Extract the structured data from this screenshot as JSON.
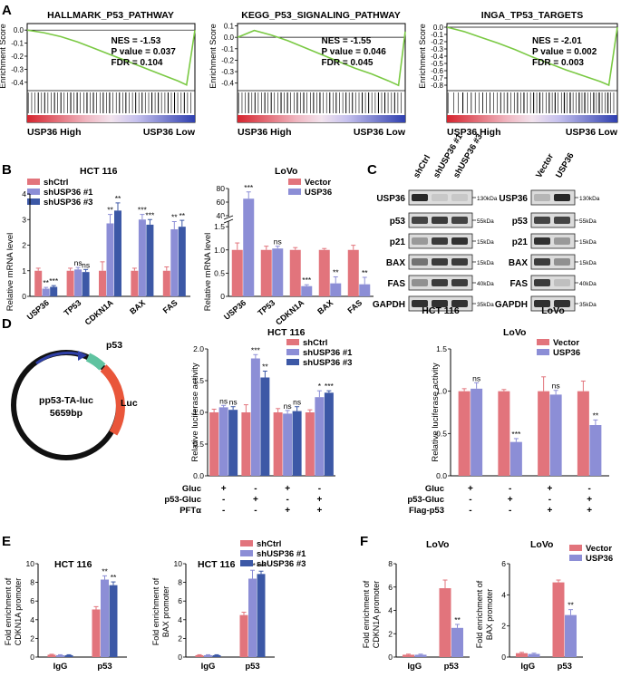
{
  "colors": {
    "pink": "#e2747c",
    "lav": "#8c8ed6",
    "navy": "#3c58a6",
    "gsea_line": "#7ac943",
    "gel_dark": "#1e1e1e",
    "gel_bg": "#dcdcdc"
  },
  "panel_letters": {
    "a": "A",
    "b": "B",
    "c": "C",
    "d": "D",
    "e": "E",
    "f": "F"
  },
  "gsea": {
    "ylabel": "Enrichment Score",
    "xleft": "USP36 High",
    "xright": "USP36 Low",
    "plots": [
      {
        "title": "HALLMARK_P53_PATHWAY",
        "nes": "NES = -1.53",
        "p": "P value = 0.037",
        "fdr": "FDR = 0.104",
        "ticks": [
          "0.0",
          "-0.1",
          "-0.2",
          "-0.3",
          "-0.4"
        ]
      },
      {
        "title": "KEGG_P53_SIGNALING_PATHWAY",
        "nes": "NES = -1.55",
        "p": "P value = 0.046",
        "fdr": "FDR = 0.045",
        "ticks": [
          "0.1",
          "0.0",
          "-0.1",
          "-0.2",
          "-0.3",
          "-0.4"
        ]
      },
      {
        "title": "INGA_TP53_TARGETS",
        "nes": "NES = -2.01",
        "p": "P value = 0.002",
        "fdr": "FDR = 0.003",
        "ticks": [
          "0.0",
          "-0.1",
          "-0.2",
          "-0.3",
          "-0.4",
          "-0.5",
          "-0.6",
          "-0.7",
          "-0.8"
        ]
      }
    ]
  },
  "b": {
    "hct": {
      "title": "HCT 116",
      "ylabel": "Relative mRNA level",
      "legend": [
        "shCtrl",
        "shUSP36 #1",
        "shUSP36 #3"
      ],
      "ticks": [
        "0",
        "1",
        "2",
        "3",
        "4"
      ],
      "categories": [
        "USP36",
        "TP53",
        "CDKN1A",
        "BAX",
        "FAS"
      ],
      "stars": [
        "**",
        "***",
        "ns",
        "ns",
        "**",
        "**",
        "***",
        "***",
        "**",
        "**"
      ]
    },
    "lovo": {
      "title": "LoVo",
      "ylabel": "Relative mRNA level",
      "legend": [
        "Vector",
        "USP36"
      ],
      "ticks_low": [
        "0",
        "0.5",
        "1.0",
        "1.5"
      ],
      "ticks_high": [
        "40",
        "60",
        "80"
      ],
      "categories": [
        "USP36",
        "TP53",
        "CDKN1A",
        "BAX",
        "FAS"
      ],
      "stars": [
        "***",
        "ns",
        "***",
        "**",
        "**"
      ]
    }
  },
  "c": {
    "hct_lanes": [
      "shCtrl",
      "shUSP36 #1",
      "shUSP36 #3"
    ],
    "lovo_lanes": [
      "Vector",
      "USP36"
    ],
    "rows": [
      "USP36",
      "p53",
      "p21",
      "BAX",
      "FAS",
      "GAPDH"
    ],
    "kda_hct": [
      "130kDa",
      "55kDa",
      "15kDa",
      "15kDa",
      "40kDa",
      "35kDa"
    ],
    "kda_lovo": [
      "130kDa",
      "55kDa",
      "15kDa",
      "15kDa",
      "40kDa",
      "35kDa"
    ],
    "label_hct": "HCT 116",
    "label_lovo": "LoVo"
  },
  "d": {
    "plasmid": {
      "name": "pp53-TA-luc",
      "size": "5659bp",
      "p53": "p53",
      "luc": "Luc"
    },
    "hct": {
      "title": "HCT 116",
      "ylabel": "Relative luciferase activity",
      "legend": [
        "shCtrl",
        "shUSP36 #1",
        "shUSP36 #3"
      ],
      "ticks": [
        "0.0",
        "0.5",
        "1.0",
        "1.5",
        "2.0"
      ],
      "stars": [
        "ns",
        "ns",
        "***",
        "**",
        "ns",
        "ns",
        "*",
        "***"
      ],
      "cond_labels": [
        "Gluc",
        "p53-Gluc",
        "PFTα"
      ],
      "cond": [
        [
          "+",
          "-",
          "+",
          "-"
        ],
        [
          "-",
          "+",
          "-",
          "+"
        ],
        [
          "-",
          "-",
          "+",
          "+"
        ]
      ]
    },
    "lovo": {
      "title": "LoVo",
      "ylabel": "Relative luciferase activity",
      "legend": [
        "Vector",
        "USP36"
      ],
      "ticks": [
        "0.0",
        "0.5",
        "1.0",
        "1.5"
      ],
      "stars": [
        "ns",
        "***",
        "ns",
        "**"
      ],
      "cond_labels": [
        "Gluc",
        "p53-Gluc",
        "Flag-p53"
      ],
      "cond": [
        [
          "+",
          "-",
          "+",
          "-"
        ],
        [
          "-",
          "+",
          "-",
          "+"
        ],
        [
          "-",
          "-",
          "+",
          "+"
        ]
      ]
    }
  },
  "e": {
    "legend": [
      "shCtrl",
      "shUSP36 #1",
      "shUSP36 #3"
    ],
    "c1": {
      "title": "HCT 116",
      "ylabel1": "Fold enrichment of",
      "ylabel2": "CDKN1A promoter",
      "ticks": [
        "0",
        "2",
        "4",
        "6",
        "8",
        "10"
      ],
      "categories": [
        "IgG",
        "p53"
      ],
      "stars": [
        "**",
        "**"
      ]
    },
    "c2": {
      "title": "HCT 116",
      "ylabel1": "Fold enrichment of",
      "ylabel2": "BAX promoter",
      "ticks": [
        "0",
        "2",
        "4",
        "6",
        "8",
        "10"
      ],
      "categories": [
        "IgG",
        "p53"
      ],
      "stars": [
        "**",
        "***"
      ]
    }
  },
  "f": {
    "legend": [
      "Vector",
      "USP36"
    ],
    "c1": {
      "title": "LoVo",
      "ylabel1": "Fold enrichment of",
      "ylabel2": "CDKN1A promoter",
      "ticks": [
        "0",
        "2",
        "4",
        "6",
        "8"
      ],
      "categories": [
        "IgG",
        "p53"
      ],
      "stars": [
        "**"
      ]
    },
    "c2": {
      "title": "LoVo",
      "ylabel1": "Fold enrichment of",
      "ylabel2": "BAX promoter",
      "ticks": [
        "0",
        "2",
        "4",
        "6"
      ],
      "categories": [
        "IgG",
        "p53"
      ],
      "stars": [
        "**"
      ]
    }
  },
  "chart_data": [
    {
      "type": "line",
      "panel": "A1",
      "title": "HALLMARK_P53_PATHWAY",
      "ylabel": "Enrichment Score",
      "ylim": [
        -0.45,
        0.05
      ],
      "x": [
        0,
        0.1,
        0.2,
        0.3,
        0.4,
        0.5,
        0.6,
        0.7,
        0.8,
        0.9,
        0.95,
        1.0
      ],
      "values": [
        0,
        -0.02,
        -0.05,
        -0.09,
        -0.14,
        -0.19,
        -0.24,
        -0.29,
        -0.34,
        -0.39,
        -0.42,
        0
      ]
    },
    {
      "type": "line",
      "panel": "A2",
      "title": "KEGG_P53_SIGNALING_PATHWAY",
      "ylabel": "Enrichment Score",
      "ylim": [
        -0.45,
        0.12
      ],
      "x": [
        0,
        0.1,
        0.2,
        0.3,
        0.4,
        0.5,
        0.6,
        0.7,
        0.8,
        0.9,
        0.96,
        1.0
      ],
      "values": [
        0,
        0.06,
        0.02,
        -0.03,
        -0.09,
        -0.15,
        -0.21,
        -0.27,
        -0.32,
        -0.38,
        -0.42,
        0.05
      ]
    },
    {
      "type": "line",
      "panel": "A3",
      "title": "INGA_TP53_TARGETS",
      "ylabel": "Enrichment Score",
      "ylim": [
        -0.85,
        0.05
      ],
      "x": [
        0,
        0.1,
        0.2,
        0.3,
        0.4,
        0.5,
        0.6,
        0.7,
        0.8,
        0.9,
        0.95,
        1.0
      ],
      "values": [
        0,
        -0.06,
        -0.14,
        -0.22,
        -0.31,
        -0.41,
        -0.5,
        -0.59,
        -0.67,
        -0.75,
        -0.8,
        0
      ]
    },
    {
      "type": "bar",
      "panel": "B-HCT116",
      "ylabel": "Relative mRNA level",
      "ylim": [
        0,
        4
      ],
      "categories": [
        "USP36",
        "TP53",
        "CDKN1A",
        "BAX",
        "FAS"
      ],
      "series": [
        {
          "name": "shCtrl",
          "values": [
            1.0,
            1.0,
            1.0,
            1.0,
            1.0
          ],
          "err": [
            0.1,
            0.1,
            0.35,
            0.1,
            0.15
          ]
        },
        {
          "name": "shUSP36 #1",
          "values": [
            0.3,
            1.05,
            2.85,
            3.0,
            2.62
          ],
          "err": [
            0.05,
            0.08,
            0.35,
            0.2,
            0.3
          ]
        },
        {
          "name": "shUSP36 #3",
          "values": [
            0.37,
            0.95,
            3.35,
            2.8,
            2.72
          ],
          "err": [
            0.05,
            0.1,
            0.3,
            0.2,
            0.25
          ]
        }
      ]
    },
    {
      "type": "bar",
      "panel": "B-LoVo",
      "ylabel": "Relative mRNA level",
      "ylim": [
        0,
        80
      ],
      "categories": [
        "USP36",
        "TP53",
        "CDKN1A",
        "BAX",
        "FAS"
      ],
      "series": [
        {
          "name": "Vector",
          "values": [
            1.0,
            1.0,
            1.0,
            1.0,
            1.0
          ],
          "err": [
            0.15,
            0.08,
            0.05,
            0.03,
            0.1
          ]
        },
        {
          "name": "USP36",
          "values": [
            65,
            1.03,
            0.22,
            0.28,
            0.26
          ],
          "err": [
            10,
            0.05,
            0.03,
            0.14,
            0.15
          ]
        }
      ]
    },
    {
      "type": "bar",
      "panel": "D-HCT116",
      "ylabel": "Relative luciferase activity",
      "ylim": [
        0,
        2
      ],
      "categories": [
        "Gluc",
        "p53-Gluc",
        "Gluc+PFTα",
        "p53-Gluc+PFTα"
      ],
      "series": [
        {
          "name": "shCtrl",
          "values": [
            1.0,
            1.0,
            1.0,
            1.0
          ],
          "err": [
            0.05,
            0.12,
            0.06,
            0.04
          ]
        },
        {
          "name": "shUSP36 #1",
          "values": [
            1.08,
            1.85,
            0.98,
            1.24
          ],
          "err": [
            0.03,
            0.06,
            0.05,
            0.1
          ]
        },
        {
          "name": "shUSP36 #3",
          "values": [
            1.04,
            1.55,
            1.02,
            1.31
          ],
          "err": [
            0.05,
            0.1,
            0.07,
            0.03
          ]
        }
      ]
    },
    {
      "type": "bar",
      "panel": "D-LoVo",
      "ylabel": "Relative luciferase activity",
      "ylim": [
        0,
        1.5
      ],
      "categories": [
        "Gluc",
        "p53-Gluc",
        "Gluc+Flag-p53",
        "p53-Gluc+Flag-p53"
      ],
      "series": [
        {
          "name": "Vector",
          "values": [
            1.0,
            1.0,
            1.0,
            1.0
          ],
          "err": [
            0.03,
            0.02,
            0.17,
            0.12
          ]
        },
        {
          "name": "USP36",
          "values": [
            1.03,
            0.4,
            0.96,
            0.6
          ],
          "err": [
            0.07,
            0.04,
            0.05,
            0.06
          ]
        }
      ]
    },
    {
      "type": "bar",
      "panel": "E-CDKN1A",
      "ylabel": "Fold enrichment of CDKN1A promoter",
      "ylim": [
        0,
        10
      ],
      "categories": [
        "IgG",
        "p53"
      ],
      "series": [
        {
          "name": "shCtrl",
          "values": [
            0.25,
            5.1
          ],
          "err": [
            0.05,
            0.3
          ]
        },
        {
          "name": "shUSP36 #1",
          "values": [
            0.2,
            8.3
          ],
          "err": [
            0.05,
            0.4
          ]
        },
        {
          "name": "shUSP36 #3",
          "values": [
            0.2,
            7.7
          ],
          "err": [
            0.05,
            0.35
          ]
        }
      ]
    },
    {
      "type": "bar",
      "panel": "E-BAX",
      "ylabel": "Fold enrichment of BAX promoter",
      "ylim": [
        0,
        10
      ],
      "categories": [
        "IgG",
        "p53"
      ],
      "series": [
        {
          "name": "shCtrl",
          "values": [
            0.2,
            4.5
          ],
          "err": [
            0.05,
            0.3
          ]
        },
        {
          "name": "shUSP36 #1",
          "values": [
            0.2,
            8.4
          ],
          "err": [
            0.05,
            0.9
          ]
        },
        {
          "name": "shUSP36 #3",
          "values": [
            0.2,
            8.9
          ],
          "err": [
            0.05,
            0.3
          ]
        }
      ]
    },
    {
      "type": "bar",
      "panel": "F-CDKN1A",
      "ylabel": "Fold enrichment of CDKN1A promoter",
      "ylim": [
        0,
        8
      ],
      "categories": [
        "IgG",
        "p53"
      ],
      "series": [
        {
          "name": "Vector",
          "values": [
            0.2,
            5.9
          ],
          "err": [
            0.05,
            0.7
          ]
        },
        {
          "name": "USP36",
          "values": [
            0.2,
            2.5
          ],
          "err": [
            0.05,
            0.3
          ]
        }
      ]
    },
    {
      "type": "bar",
      "panel": "F-BAX",
      "ylabel": "Fold enrichment of BAX promoter",
      "ylim": [
        0,
        6
      ],
      "categories": [
        "IgG",
        "p53"
      ],
      "series": [
        {
          "name": "Vector",
          "values": [
            0.25,
            4.8
          ],
          "err": [
            0.05,
            0.15
          ]
        },
        {
          "name": "USP36",
          "values": [
            0.2,
            2.7
          ],
          "err": [
            0.05,
            0.35
          ]
        }
      ]
    }
  ]
}
